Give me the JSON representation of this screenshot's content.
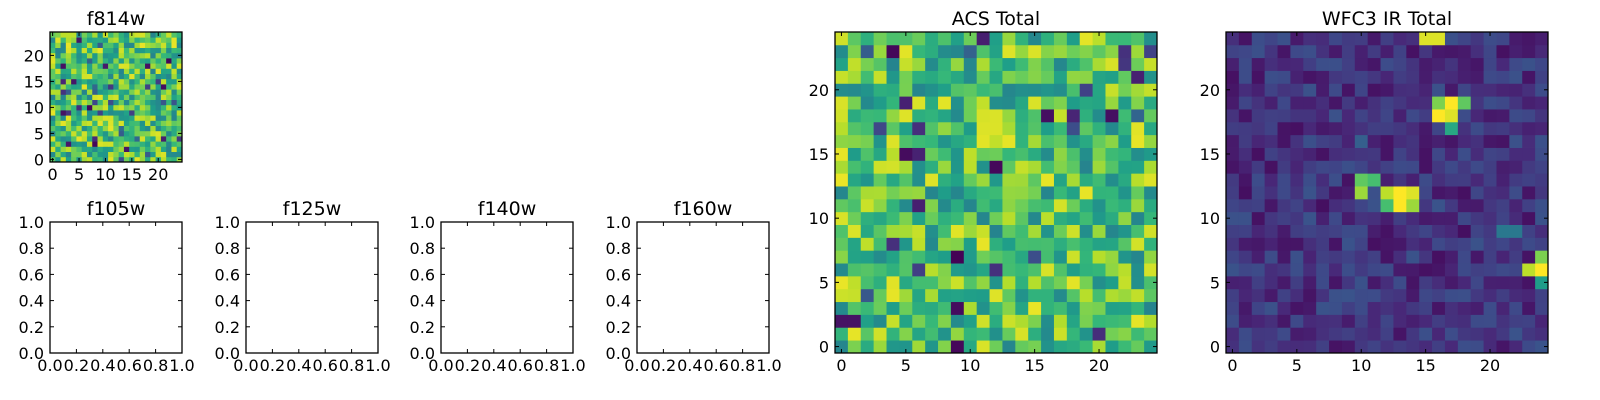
{
  "chart_data": [
    {
      "type": "heatmap",
      "title": "f814w",
      "grid_size": 25,
      "xlim": [
        -0.5,
        24.5
      ],
      "ylim": [
        -0.5,
        24.5
      ],
      "xticks": [
        0,
        5,
        10,
        15,
        20
      ],
      "yticks": [
        0,
        5,
        10,
        15,
        20
      ],
      "colormap": "viridis",
      "pattern": "noise-high",
      "seed": 814,
      "hot_spots": []
    },
    {
      "type": "heatmap",
      "title": "f105w",
      "empty": true,
      "xlim": [
        0,
        1
      ],
      "ylim": [
        0,
        1
      ],
      "xticks": [
        0.0,
        0.2,
        0.4,
        0.6,
        0.8,
        1.0
      ],
      "yticks": [
        0.0,
        0.2,
        0.4,
        0.6,
        0.8,
        1.0
      ]
    },
    {
      "type": "heatmap",
      "title": "f125w",
      "empty": true,
      "xlim": [
        0,
        1
      ],
      "ylim": [
        0,
        1
      ],
      "xticks": [
        0.0,
        0.2,
        0.4,
        0.6,
        0.8,
        1.0
      ],
      "yticks": [
        0.0,
        0.2,
        0.4,
        0.6,
        0.8,
        1.0
      ]
    },
    {
      "type": "heatmap",
      "title": "f140w",
      "empty": true,
      "xlim": [
        0,
        1
      ],
      "ylim": [
        0,
        1
      ],
      "xticks": [
        0.0,
        0.2,
        0.4,
        0.6,
        0.8,
        1.0
      ],
      "yticks": [
        0.0,
        0.2,
        0.4,
        0.6,
        0.8,
        1.0
      ]
    },
    {
      "type": "heatmap",
      "title": "f160w",
      "empty": true,
      "xlim": [
        0,
        1
      ],
      "ylim": [
        0,
        1
      ],
      "xticks": [
        0.0,
        0.2,
        0.4,
        0.6,
        0.8,
        1.0
      ],
      "yticks": [
        0.0,
        0.2,
        0.4,
        0.6,
        0.8,
        1.0
      ]
    },
    {
      "type": "heatmap",
      "title": "ACS Total",
      "grid_size": 25,
      "xlim": [
        -0.5,
        24.5
      ],
      "ylim": [
        -0.5,
        24.5
      ],
      "xticks": [
        0,
        5,
        10,
        15,
        20
      ],
      "yticks": [
        0,
        5,
        10,
        15,
        20
      ],
      "colormap": "viridis",
      "pattern": "noise-high",
      "seed": 2024,
      "hot_spots": [
        [
          4,
          23,
          0.02
        ],
        [
          5,
          15,
          0.03
        ],
        [
          12,
          14,
          0.02
        ],
        [
          9,
          3,
          0.03
        ],
        [
          0,
          2,
          0.05
        ],
        [
          1,
          2,
          0.05
        ],
        [
          9,
          0,
          0.02
        ],
        [
          21,
          18,
          0.04
        ],
        [
          24,
          23,
          0.2
        ]
      ]
    },
    {
      "type": "heatmap",
      "title": "WFC3 IR Total",
      "grid_size": 25,
      "xlim": [
        -0.5,
        24.5
      ],
      "ylim": [
        -0.5,
        24.5
      ],
      "xticks": [
        0,
        5,
        10,
        15,
        20
      ],
      "yticks": [
        0,
        5,
        10,
        15,
        20
      ],
      "colormap": "viridis",
      "pattern": "noise-low",
      "seed": 3160,
      "hot_spots": [
        [
          15,
          24,
          0.95
        ],
        [
          16,
          24,
          0.95
        ],
        [
          16,
          19,
          0.8
        ],
        [
          17,
          19,
          1.0
        ],
        [
          18,
          19,
          0.75
        ],
        [
          16,
          18,
          1.0
        ],
        [
          17,
          18,
          0.95
        ],
        [
          17,
          17,
          0.6
        ],
        [
          10,
          13,
          0.75
        ],
        [
          11,
          13,
          0.7
        ],
        [
          10,
          12,
          0.85
        ],
        [
          12,
          12,
          0.9
        ],
        [
          13,
          12,
          1.0
        ],
        [
          14,
          12,
          0.95
        ],
        [
          12,
          11,
          0.7
        ],
        [
          13,
          11,
          1.0
        ],
        [
          14,
          11,
          0.85
        ],
        [
          24,
          7,
          0.8
        ],
        [
          23,
          6,
          0.9
        ],
        [
          24,
          6,
          1.0
        ],
        [
          24,
          5,
          0.55
        ],
        [
          21,
          9,
          0.4
        ],
        [
          22,
          9,
          0.4
        ],
        [
          10,
          16,
          0.3
        ]
      ]
    }
  ]
}
